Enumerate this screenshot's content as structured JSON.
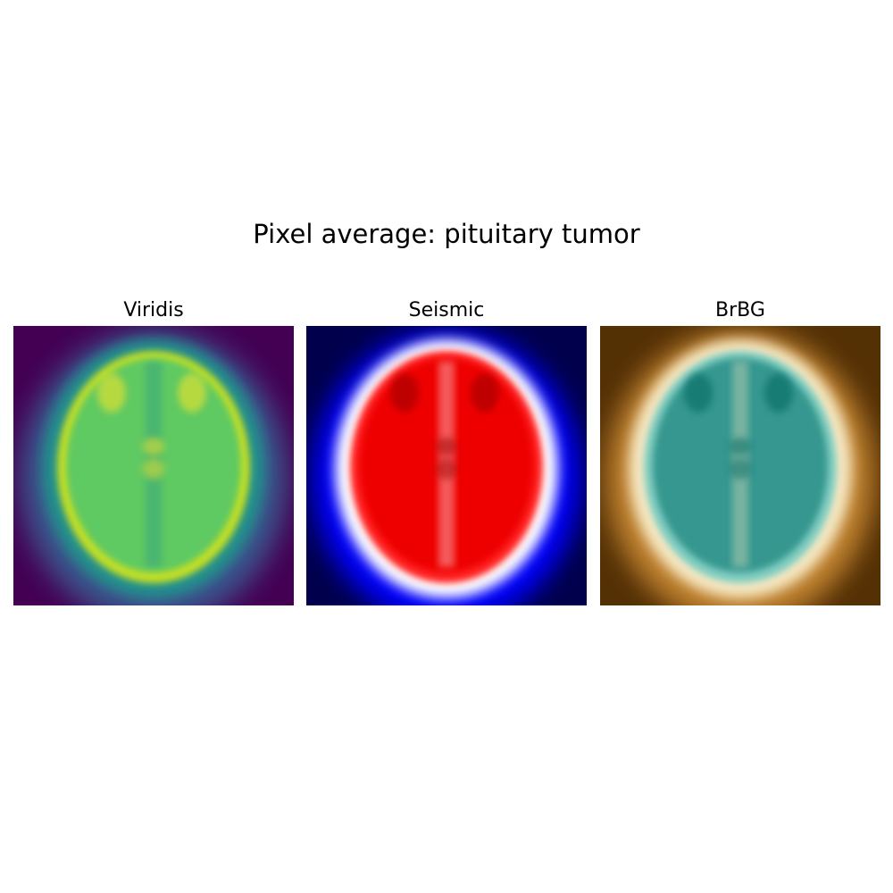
{
  "figure": {
    "title": "Pixel average: pituitary tumor"
  },
  "panels": [
    {
      "title": "Viridis",
      "colormap": "viridis",
      "colors": {
        "background": "#440154",
        "outer": "#3b528b",
        "mid": "#21918c",
        "brain": "#5ec962",
        "bright": "#c8e020",
        "peak": "#fde725"
      }
    },
    {
      "title": "Seismic",
      "colormap": "seismic",
      "colors": {
        "background": "#00004c",
        "outer": "#0000ff",
        "mid": "#ffffff",
        "brain": "#ee0000",
        "bright": "#ff2020",
        "peak": "#990000"
      }
    },
    {
      "title": "BrBG",
      "colormap": "BrBG",
      "colors": {
        "background": "#543005",
        "outer": "#bf812d",
        "mid": "#f6e8c3",
        "brain": "#35978f",
        "bright": "#80cdc1",
        "peak": "#01665e"
      }
    }
  ]
}
